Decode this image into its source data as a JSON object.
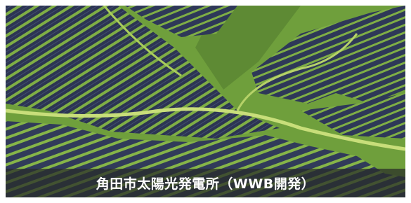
{
  "caption": "角田市太陽光発電所（WWB開発）"
}
